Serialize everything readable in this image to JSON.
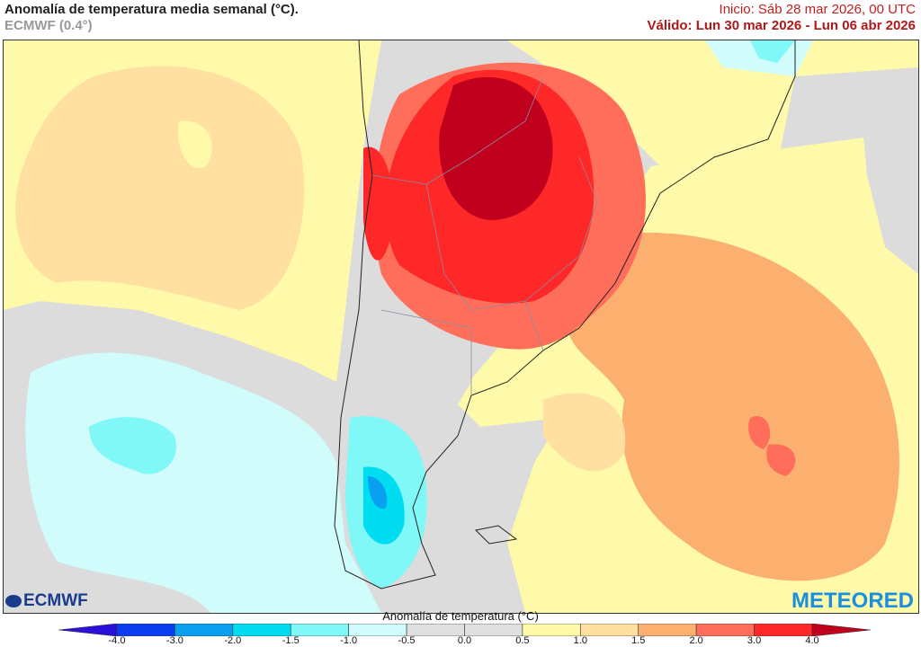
{
  "header": {
    "title": "Anomalía de temperatura media semanal (°C).",
    "model": "ECMWF (0.4°)",
    "init": "Inicio: Sáb 28 mar 2026, 00 UTC",
    "valid": "Válido: Lun 30 mar 2026 - Lun 06 abr 2026"
  },
  "logos": {
    "left": "ECMWF",
    "right": "METEORED"
  },
  "colorbar": {
    "title": "Anomalía de temperatura (°C)",
    "ticks": [
      "-4.0",
      "-3.0",
      "-2.0",
      "-1.5",
      "-1.0",
      "-0.5",
      "0.0",
      "0.5",
      "1.0",
      "1.5",
      "2.0",
      "3.0",
      "4.0"
    ],
    "under_color": "#2a10d8",
    "over_color": "#c0001c",
    "colors": [
      "#0a3cf0",
      "#0aa0f0",
      "#00dcf0",
      "#80f8f8",
      "#d0fcfc",
      "#e0e0e0",
      "#e0e0e0",
      "#fffaaa",
      "#ffe0a0",
      "#fcb070",
      "#ff6e5a",
      "#ff2828"
    ]
  }
}
